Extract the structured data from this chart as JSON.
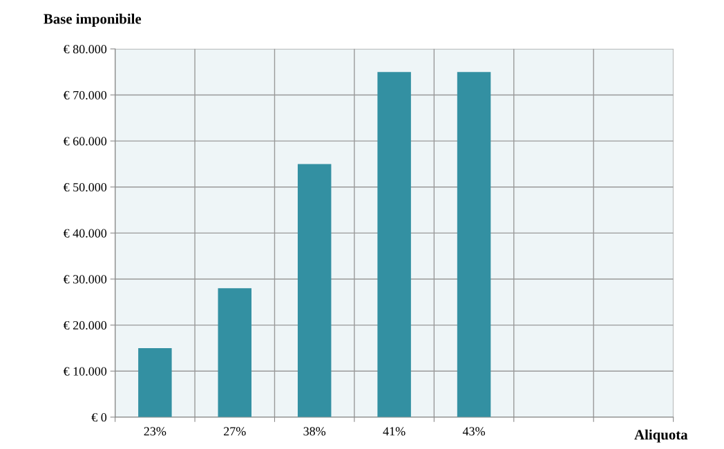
{
  "chart_data": {
    "type": "bar",
    "title": "Base imponibile",
    "xlabel": "Aliquota",
    "categories": [
      "23%",
      "27%",
      "38%",
      "41%",
      "43%",
      null,
      null
    ],
    "values": [
      15000,
      28000,
      55000,
      75000,
      75000,
      null,
      null
    ],
    "color": "#3390a2",
    "ylim": [
      0,
      80000
    ],
    "yticks": [
      {
        "value": 0,
        "label": "€ 0"
      },
      {
        "value": 10000,
        "label": "€ 10.000"
      },
      {
        "value": 20000,
        "label": "€ 20.000"
      },
      {
        "value": 30000,
        "label": "€ 30.000"
      },
      {
        "value": 40000,
        "label": "€ 40.000"
      },
      {
        "value": 50000,
        "label": "€ 50.000"
      },
      {
        "value": 60000,
        "label": "€ 60.000"
      },
      {
        "value": 70000,
        "label": "€ 70.000"
      },
      {
        "value": 80000,
        "label": "€ 80.000"
      }
    ],
    "grid": true
  }
}
